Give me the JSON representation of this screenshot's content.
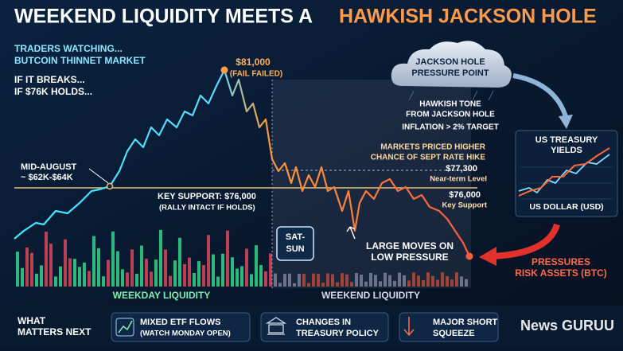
{
  "header": {
    "title_white": "WEEKEND LIQUIDITY MEETS A",
    "title_orange": "HAWKISH JACKSON HOLE"
  },
  "notes": [
    "TRADERS WATCHING...",
    "BUTCOIN THINNET MARKET",
    "IF IT BREAKS...",
    "IF $76K HOLDS..."
  ],
  "chart": {
    "peak": {
      "price": "$81,000",
      "note": "(FAIL FAILED)"
    },
    "mid_august": {
      "label": "MID-AUGUST",
      "range": "~ $62K-$64K"
    },
    "key_support": {
      "label": "KEY SUPPORT: $76,000",
      "note": "(RALLY INTACT IF HOLDS)"
    },
    "rate_hike": [
      "MARKETS PRICED HIGHER",
      "CHANCE OF SEPT RATE HIKE"
    ],
    "near_term": {
      "price": "$77,300",
      "label": "Near-term Level"
    },
    "support_right": {
      "price": "$76,000",
      "label": "Key Support"
    },
    "weekend_badge": [
      "SAT-",
      "SUN"
    ],
    "large_moves": [
      "LARGE MOVES ON",
      "LOW PRESSURE"
    ],
    "weekday_label": "WEEKDAY LIQUIDITY",
    "weekend_label": "WEEKEND LIQUIDITY"
  },
  "cloud": {
    "title": [
      "JACKSON HOLE",
      "PRESSURE POINT"
    ],
    "lines": [
      "HAWKISH TONE",
      "FROM JACKSON HOLE",
      "INFLATION > 2% TARGET"
    ]
  },
  "yields_panel": {
    "title": [
      "US TREASURY",
      "YIELDS"
    ],
    "footer": "US DOLLAR (USD)"
  },
  "pressure": [
    "PRESSURES",
    "RISK ASSETS (BTC)"
  ],
  "footer": {
    "heading": [
      "WHAT",
      "MATTERS NEXT"
    ],
    "items": [
      [
        "MIXED ETF FLOWS",
        "(WATCH MONDAY OPEN)"
      ],
      [
        "CHANGES IN",
        "TREASURY POLICY"
      ],
      [
        "MAJOR SHORT",
        "SQUEEZE"
      ]
    ],
    "watermark": "News GURUU"
  }
}
